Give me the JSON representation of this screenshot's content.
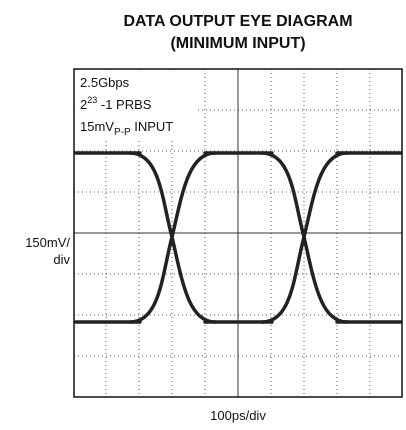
{
  "title": [
    "DATA OUTPUT EYE DIAGRAM",
    "(MINIMUM INPUT)"
  ],
  "annotations": [
    "2.5Gbps",
    {
      "base": "2",
      "sup": "23",
      "rest": " -1 PRBS"
    },
    {
      "base": "15mV",
      "sub": "P-P",
      "rest": " INPUT"
    }
  ],
  "y_label": [
    "150mV/",
    "div"
  ],
  "x_label": "100ps/div"
}
